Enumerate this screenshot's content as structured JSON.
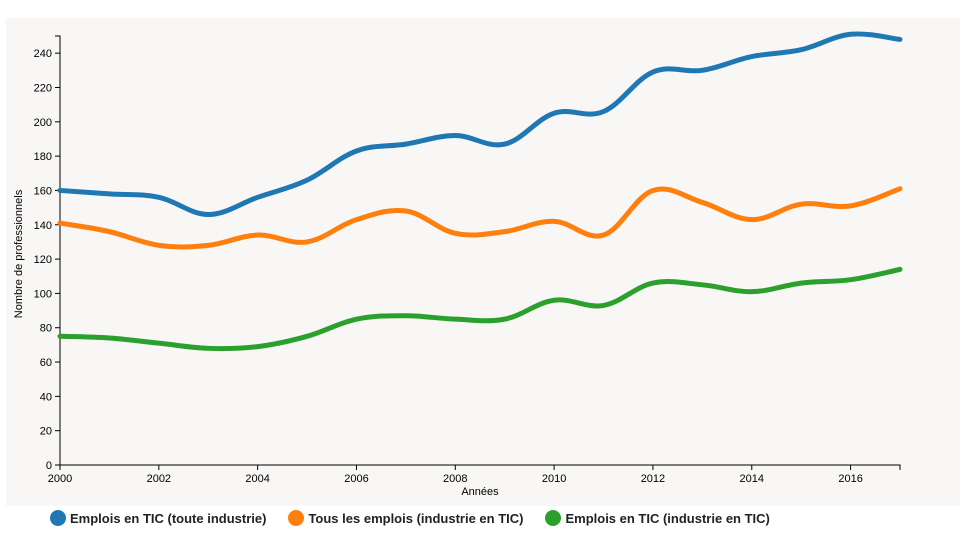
{
  "chart_data": {
    "type": "line",
    "title": "",
    "xlabel": "Années",
    "ylabel": "Nombre de professionnels",
    "x": [
      2000,
      2001,
      2002,
      2003,
      2004,
      2005,
      2006,
      2007,
      2008,
      2009,
      2010,
      2011,
      2012,
      2013,
      2014,
      2015,
      2016,
      2017
    ],
    "xlim": [
      2000,
      2017
    ],
    "ylim": [
      0,
      250
    ],
    "xticks": [
      "2000",
      "2002",
      "2004",
      "2006",
      "2008",
      "2010",
      "2012",
      "2014",
      "2016"
    ],
    "yticks": [
      "0",
      "20",
      "40",
      "60",
      "80",
      "100",
      "120",
      "140",
      "160",
      "180",
      "200",
      "220",
      "240"
    ],
    "grid": false,
    "legend_position": "bottom-left",
    "series": [
      {
        "name": "Emplois en TIC (toute industrie)",
        "color": "#1f77b4",
        "values": [
          160,
          158,
          156,
          146,
          156,
          166,
          183,
          187,
          192,
          187,
          205,
          206,
          229,
          230,
          238,
          242,
          251,
          248
        ]
      },
      {
        "name": "Tous les emplois (industrie en TIC)",
        "color": "#ff7f0e",
        "values": [
          141,
          136,
          128,
          128,
          134,
          130,
          143,
          148,
          135,
          136,
          142,
          134,
          160,
          153,
          143,
          152,
          151,
          161
        ]
      },
      {
        "name": "Emplois en TIC (industrie en TIC)",
        "color": "#2ca02c",
        "values": [
          75,
          74,
          71,
          68,
          69,
          75,
          85,
          87,
          85,
          85,
          96,
          93,
          106,
          105,
          101,
          106,
          108,
          114
        ]
      }
    ]
  }
}
